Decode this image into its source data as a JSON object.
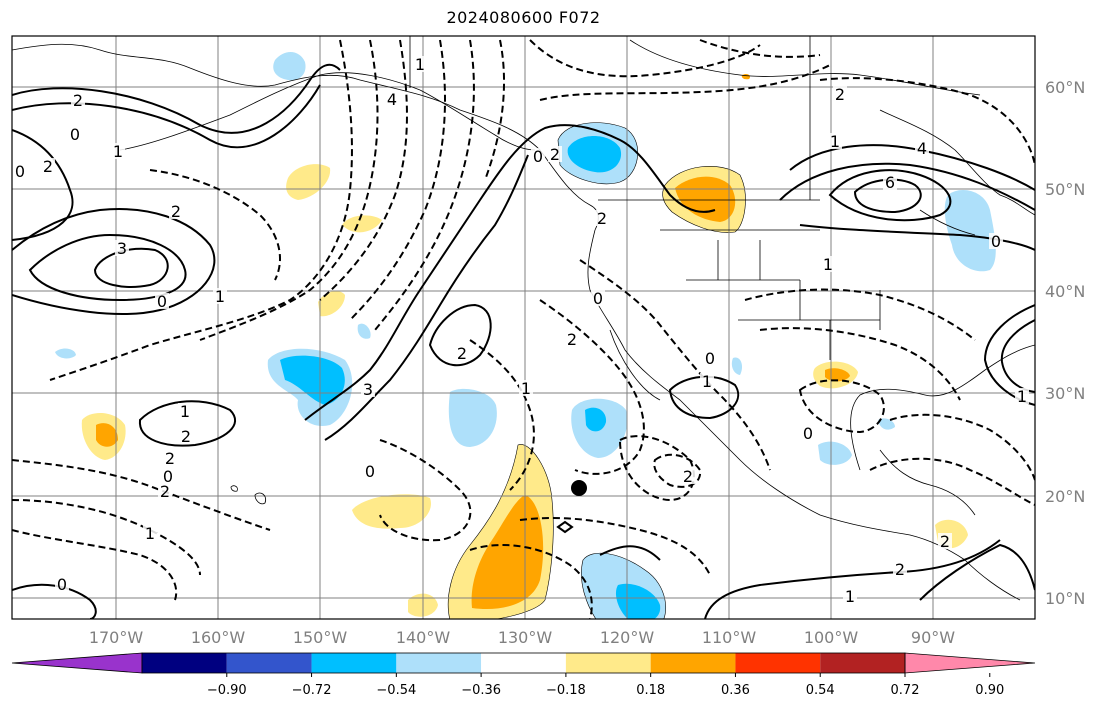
{
  "title": "2024080600 F072",
  "map": {
    "projection": "lat-lon",
    "lon_range": [
      -180,
      -80
    ],
    "lat_range": [
      8,
      65
    ],
    "gridlines": true,
    "grid_color": "#808080",
    "coastline_color": "#000000",
    "contour_color": "#000000",
    "marker": {
      "lon": -125.5,
      "lat": 20.7,
      "label": ""
    }
  },
  "lon_labels": [
    "170°W",
    "160°W",
    "150°W",
    "140°W",
    "130°W",
    "120°W",
    "110°W",
    "100°W",
    "90°W"
  ],
  "lat_labels": [
    "60°N",
    "50°N",
    "40°N",
    "30°N",
    "20°N",
    "10°N"
  ],
  "contour_labels": [
    "2",
    "0",
    "1",
    "2",
    "3",
    "2",
    "0",
    "1",
    "0",
    "1",
    "2",
    "2",
    "2",
    "0",
    "2",
    "3",
    "4",
    "1",
    "0",
    "2",
    "6",
    "4",
    "1",
    "1",
    "0",
    "2",
    "1",
    "0",
    "1",
    "2",
    "0",
    "1",
    "2",
    "1",
    "2",
    "0",
    "0",
    "1",
    "0",
    "2",
    "2"
  ],
  "colorbar": {
    "ticks": [
      "−0.90",
      "−0.72",
      "−0.54",
      "−0.36",
      "−0.18",
      "0.18",
      "0.36",
      "0.54",
      "0.72",
      "0.90"
    ],
    "colors": [
      "#9933cc",
      "#000080",
      "#3355cc",
      "#00bfff",
      "#aee0fa",
      "#ffffff",
      "#ffea8a",
      "#ffa500",
      "#ff3300",
      "#b22222",
      "#ff88aa"
    ],
    "extend": "both"
  },
  "shading_colors": {
    "neg_light": "#aee0fa",
    "neg_mid": "#00bfff",
    "pos_light": "#ffea8a",
    "pos_mid": "#ffa500"
  }
}
